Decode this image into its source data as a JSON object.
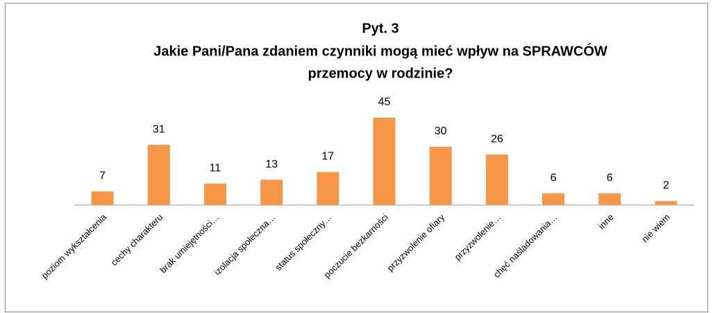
{
  "chart_data": {
    "type": "bar",
    "title": [
      "Pyt. 3",
      "Jakie Pani/Pana zdaniem czynniki mogą mieć wpływ na SPRAWCÓW",
      "przemocy w rodzinie?"
    ],
    "categories": [
      "poziom wykształcenia",
      "cechy charakteru",
      "brak umiejętności…",
      "izolacja społeczna…",
      "status społeczny…",
      "poczucie bezkarności",
      "przyzwolenie ofiary",
      "przyzwolenie…",
      "chęć naśladowania…",
      "inne",
      "nie wiem"
    ],
    "values": [
      7,
      31,
      11,
      13,
      17,
      45,
      30,
      26,
      6,
      6,
      2
    ],
    "color": "#f79646"
  }
}
